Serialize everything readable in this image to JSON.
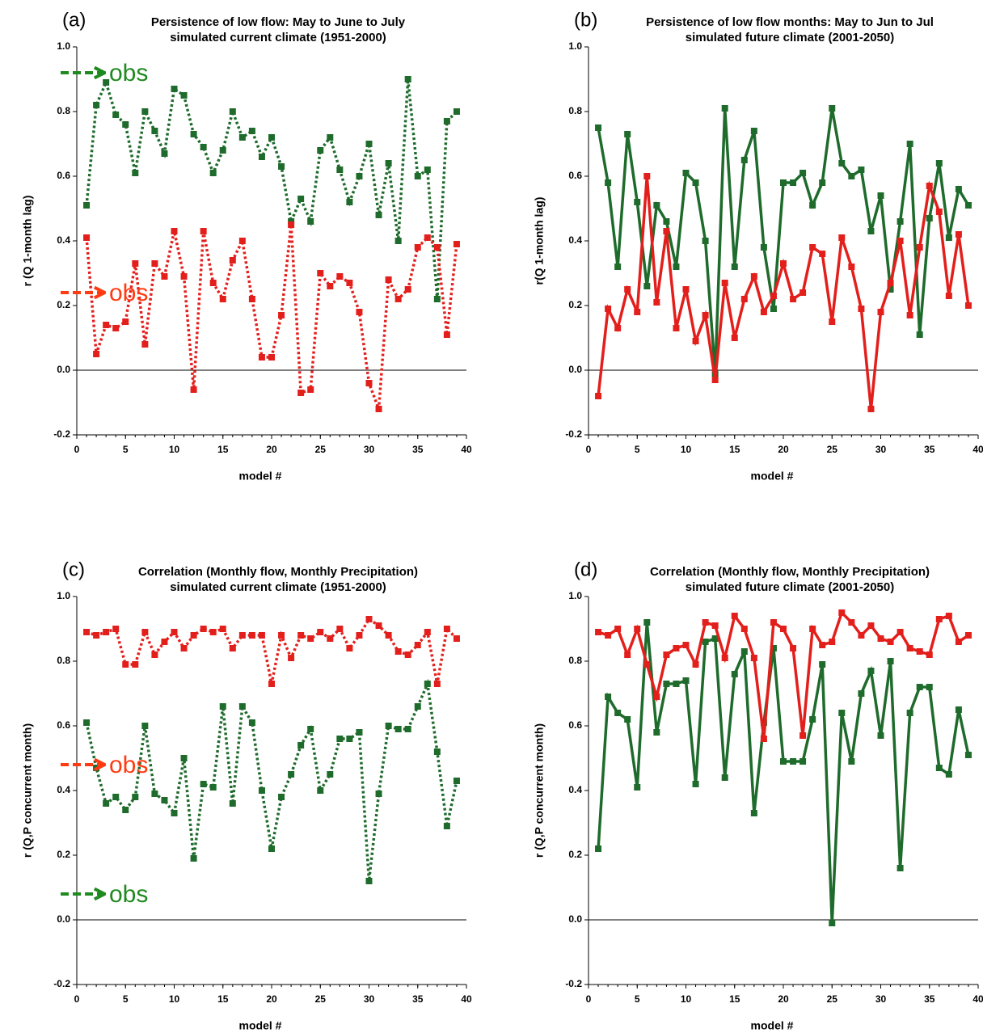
{
  "chart_data": [
    {
      "type": "line",
      "panel_label": "(a)",
      "title": "Persistence of low flow: May to June to July",
      "subtitle": "simulated current climate (1951-2000)",
      "xlabel": "model #",
      "ylabel": "r (Q 1-month lag)",
      "line_style": "dotted",
      "marker": "square",
      "x": [
        1,
        2,
        3,
        4,
        5,
        6,
        7,
        8,
        9,
        10,
        11,
        12,
        13,
        14,
        15,
        16,
        17,
        18,
        19,
        20,
        21,
        22,
        23,
        24,
        25,
        26,
        27,
        28,
        29,
        30,
        31,
        32,
        33,
        34,
        35,
        36,
        37,
        38,
        39
      ],
      "xlim": [
        0,
        40
      ],
      "xticks": [
        0,
        5,
        10,
        15,
        20,
        25,
        30,
        35,
        40
      ],
      "ylim": [
        -0.2,
        1.0
      ],
      "yticks": [
        -0.2,
        {
          "value": 0,
          "label": "0.0"
        },
        0.2,
        0.4,
        0.6,
        0.8,
        {
          "value": 1,
          "label": "1.0"
        }
      ],
      "series": [
        {
          "color": "#1e6b2c",
          "values": [
            0.51,
            0.82,
            0.89,
            0.79,
            0.76,
            0.61,
            0.8,
            0.74,
            0.67,
            0.87,
            0.85,
            0.73,
            0.69,
            0.61,
            0.68,
            0.8,
            0.72,
            0.74,
            0.66,
            0.72,
            0.63,
            0.46,
            0.53,
            0.46,
            0.68,
            0.72,
            0.62,
            0.52,
            0.6,
            0.7,
            0.48,
            0.64,
            0.4,
            0.9,
            0.6,
            0.62,
            0.22,
            0.77,
            0.8
          ]
        },
        {
          "color": "#e31f1c",
          "values": [
            0.41,
            0.05,
            0.14,
            0.13,
            0.15,
            0.33,
            0.08,
            0.33,
            0.29,
            0.43,
            0.29,
            -0.06,
            0.43,
            0.27,
            0.22,
            0.34,
            0.4,
            0.22,
            0.04,
            0.04,
            0.17,
            0.45,
            -0.07,
            -0.06,
            0.3,
            0.26,
            0.29,
            0.27,
            0.18,
            -0.04,
            -0.12,
            0.28,
            0.22,
            0.25,
            0.38,
            0.41,
            0.38,
            0.11,
            0.39
          ]
        }
      ],
      "annotations": [
        {
          "text": "obs",
          "value": 0.92,
          "color": "#1f8a1f"
        },
        {
          "text": "obs",
          "value": 0.24,
          "color": "#ff3b12"
        }
      ]
    },
    {
      "type": "line",
      "panel_label": "(b)",
      "title": "Persistence of low flow months: May to Jun to Jul",
      "subtitle": "simulated future climate (2001-2050)",
      "xlabel": "model #",
      "ylabel": "r(Q 1-month lag)",
      "line_style": "solid",
      "marker": "square",
      "x": [
        1,
        2,
        3,
        4,
        5,
        6,
        7,
        8,
        9,
        10,
        11,
        12,
        13,
        14,
        15,
        16,
        17,
        18,
        19,
        20,
        21,
        22,
        23,
        24,
        25,
        26,
        27,
        28,
        29,
        30,
        31,
        32,
        33,
        34,
        35,
        36,
        37,
        38,
        39
      ],
      "xlim": [
        0,
        40
      ],
      "xticks": [
        0,
        5,
        10,
        15,
        20,
        25,
        30,
        35,
        40
      ],
      "ylim": [
        -0.2,
        1.0
      ],
      "yticks": [
        -0.2,
        {
          "value": 0,
          "label": "0.0"
        },
        0.2,
        0.4,
        0.6,
        0.8,
        {
          "value": 1,
          "label": "1.0"
        }
      ],
      "series": [
        {
          "color": "#1e6b2c",
          "values": [
            0.75,
            0.58,
            0.32,
            0.73,
            0.52,
            0.26,
            0.51,
            0.46,
            0.32,
            0.61,
            0.58,
            0.4,
            -0.01,
            0.81,
            0.32,
            0.65,
            0.74,
            0.38,
            0.19,
            0.58,
            0.58,
            0.61,
            0.51,
            0.58,
            0.81,
            0.64,
            0.6,
            0.62,
            0.43,
            0.54,
            0.25,
            0.46,
            0.7,
            0.11,
            0.47,
            0.64,
            0.41,
            0.56,
            0.51
          ]
        },
        {
          "color": "#e31f1c",
          "values": [
            -0.08,
            0.19,
            0.13,
            0.25,
            0.18,
            0.6,
            0.21,
            0.43,
            0.13,
            0.25,
            0.09,
            0.17,
            -0.03,
            0.27,
            0.1,
            0.22,
            0.29,
            0.18,
            0.23,
            0.33,
            0.22,
            0.24,
            0.38,
            0.36,
            0.15,
            0.41,
            0.32,
            0.19,
            -0.12,
            0.18,
            0.27,
            0.4,
            0.17,
            0.38,
            0.57,
            0.49,
            0.23,
            0.42,
            0.2
          ]
        }
      ],
      "annotations": []
    },
    {
      "type": "line",
      "panel_label": "(c)",
      "title": "Correlation (Monthly flow, Monthly Precipitation)",
      "subtitle": "simulated current climate (1951-2000)",
      "xlabel": "model #",
      "ylabel": "r (Q,P concurrent month)",
      "line_style": "dotted",
      "marker": "square",
      "x": [
        1,
        2,
        3,
        4,
        5,
        6,
        7,
        8,
        9,
        10,
        11,
        12,
        13,
        14,
        15,
        16,
        17,
        18,
        19,
        20,
        21,
        22,
        23,
        24,
        25,
        26,
        27,
        28,
        29,
        30,
        31,
        32,
        33,
        34,
        35,
        36,
        37,
        38,
        39
      ],
      "xlim": [
        0,
        40
      ],
      "xticks": [
        0,
        5,
        10,
        15,
        20,
        25,
        30,
        35,
        40
      ],
      "ylim": [
        -0.2,
        1.0
      ],
      "yticks": [
        -0.2,
        {
          "value": 0,
          "label": "0.0"
        },
        0.2,
        0.4,
        0.6,
        0.8,
        {
          "value": 1,
          "label": "1.0"
        }
      ],
      "series": [
        {
          "color": "#1e6b2c",
          "values": [
            0.61,
            0.47,
            0.36,
            0.38,
            0.34,
            0.38,
            0.6,
            0.39,
            0.37,
            0.33,
            0.5,
            0.19,
            0.42,
            0.41,
            0.66,
            0.36,
            0.66,
            0.61,
            0.4,
            0.22,
            0.38,
            0.45,
            0.54,
            0.59,
            0.4,
            0.45,
            0.56,
            0.56,
            0.58,
            0.12,
            0.39,
            0.6,
            0.59,
            0.59,
            0.66,
            0.73,
            0.52,
            0.29,
            0.43
          ]
        },
        {
          "color": "#e31f1c",
          "values": [
            0.89,
            0.88,
            0.89,
            0.9,
            0.79,
            0.79,
            0.89,
            0.82,
            0.86,
            0.89,
            0.84,
            0.88,
            0.9,
            0.89,
            0.9,
            0.84,
            0.88,
            0.88,
            0.88,
            0.73,
            0.88,
            0.81,
            0.88,
            0.87,
            0.89,
            0.87,
            0.9,
            0.84,
            0.88,
            0.93,
            0.91,
            0.88,
            0.83,
            0.82,
            0.85,
            0.89,
            0.73,
            0.9,
            0.87
          ]
        }
      ],
      "annotations": [
        {
          "text": "obs",
          "value": 0.48,
          "color": "#ff3b12"
        },
        {
          "text": "obs",
          "value": 0.08,
          "color": "#1f8a1f"
        }
      ]
    },
    {
      "type": "line",
      "panel_label": "(d)",
      "title": "Correlation (Monthly flow, Monthly Precipitation)",
      "subtitle": "simulated future climate (2001-2050)",
      "xlabel": "model #",
      "ylabel": "r (Q,P concurrent month)",
      "line_style": "solid",
      "marker": "square",
      "x": [
        1,
        2,
        3,
        4,
        5,
        6,
        7,
        8,
        9,
        10,
        11,
        12,
        13,
        14,
        15,
        16,
        17,
        18,
        19,
        20,
        21,
        22,
        23,
        24,
        25,
        26,
        27,
        28,
        29,
        30,
        31,
        32,
        33,
        34,
        35,
        36,
        37,
        38,
        39
      ],
      "xlim": [
        0,
        40
      ],
      "xticks": [
        0,
        5,
        10,
        15,
        20,
        25,
        30,
        35,
        40
      ],
      "ylim": [
        -0.2,
        1.0
      ],
      "yticks": [
        -0.2,
        {
          "value": 0,
          "label": "0.0"
        },
        0.2,
        0.4,
        0.6,
        0.8,
        {
          "value": 1,
          "label": "1.0"
        }
      ],
      "series": [
        {
          "color": "#1e6b2c",
          "values": [
            0.22,
            0.69,
            0.64,
            0.62,
            0.41,
            0.92,
            0.58,
            0.73,
            0.73,
            0.74,
            0.42,
            0.86,
            0.87,
            0.44,
            0.76,
            0.83,
            0.33,
            0.61,
            0.84,
            0.49,
            0.49,
            0.49,
            0.62,
            0.79,
            -0.01,
            0.64,
            0.49,
            0.7,
            0.77,
            0.57,
            0.8,
            0.16,
            0.64,
            0.72,
            0.72,
            0.47,
            0.45,
            0.65,
            0.51
          ]
        },
        {
          "color": "#e31f1c",
          "values": [
            0.89,
            0.88,
            0.9,
            0.82,
            0.9,
            0.79,
            0.69,
            0.82,
            0.84,
            0.85,
            0.79,
            0.92,
            0.91,
            0.81,
            0.94,
            0.9,
            0.81,
            0.56,
            0.92,
            0.9,
            0.84,
            0.57,
            0.9,
            0.85,
            0.86,
            0.95,
            0.92,
            0.88,
            0.91,
            0.87,
            0.86,
            0.89,
            0.84,
            0.83,
            0.82,
            0.93,
            0.94,
            0.86,
            0.88
          ]
        }
      ],
      "annotations": []
    }
  ]
}
